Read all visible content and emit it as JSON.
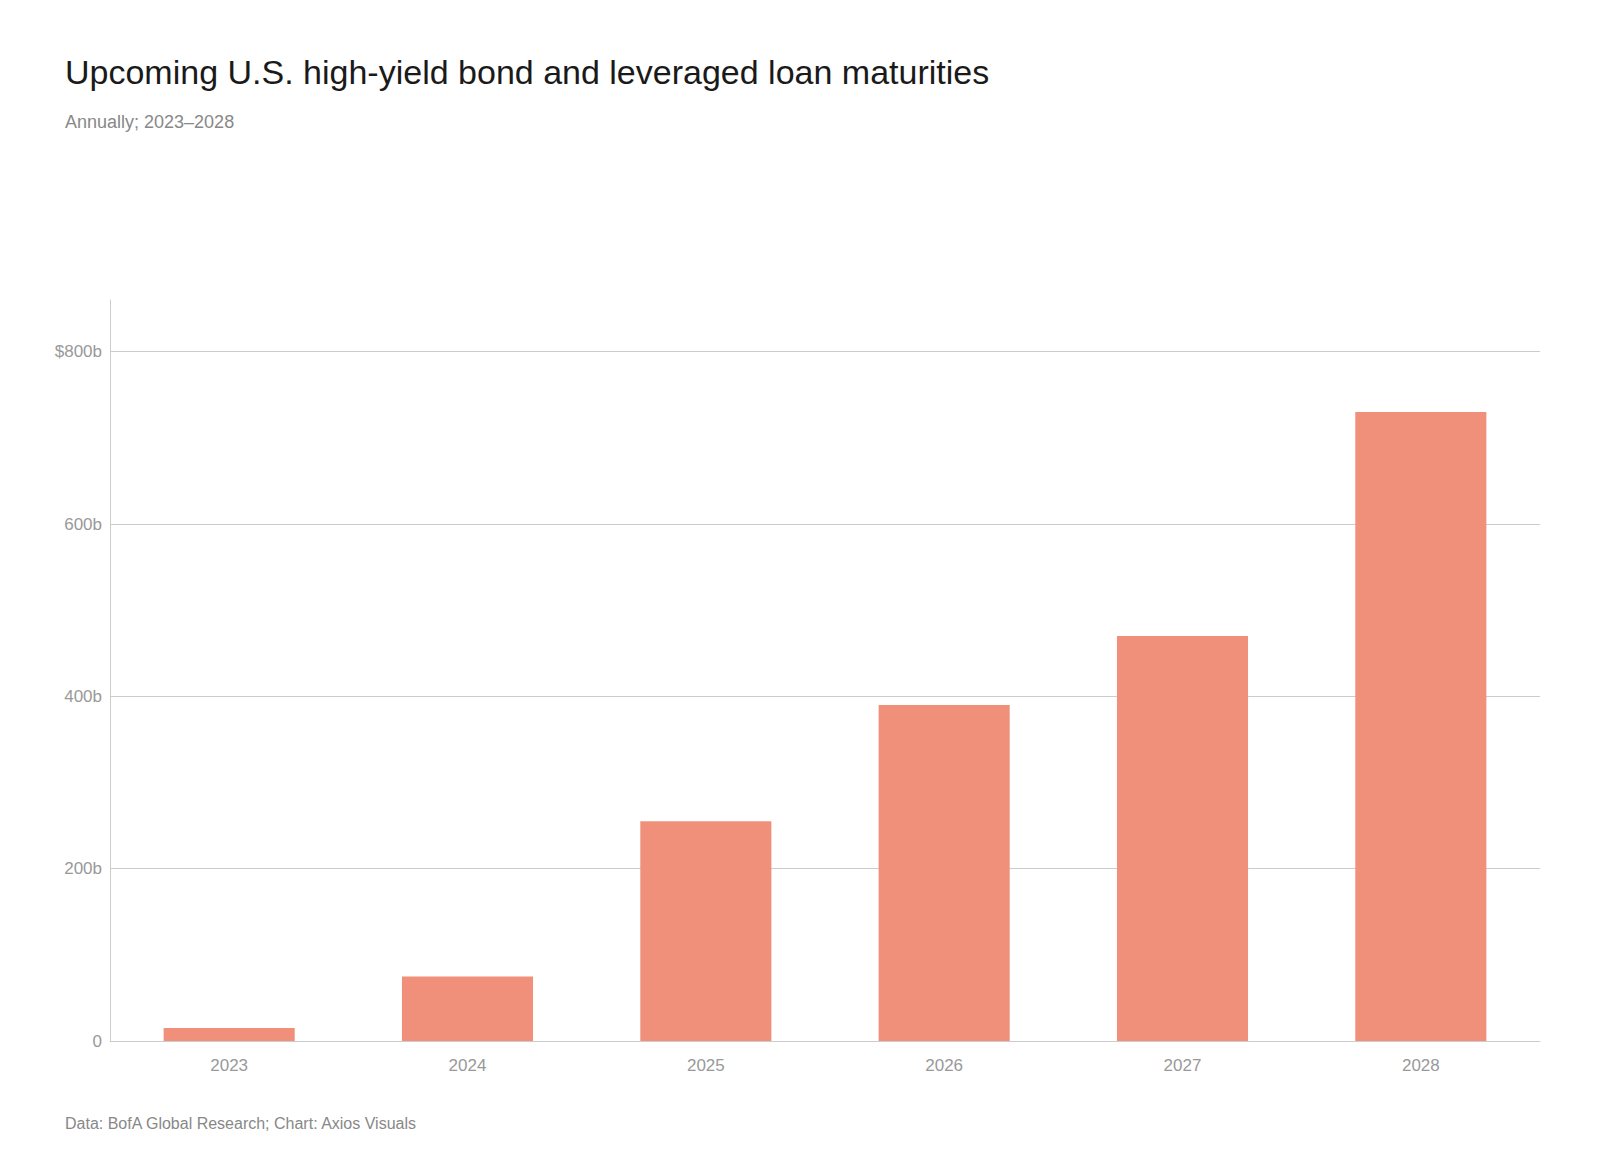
{
  "chart_data": {
    "type": "bar",
    "title": "Upcoming U.S. high-yield bond and leveraged loan maturities",
    "subtitle": "Annually; 2023–2028",
    "footer": "Data: BofA Global Research; Chart: Axios Visuals",
    "categories": [
      "2023",
      "2024",
      "2025",
      "2026",
      "2027",
      "2028"
    ],
    "values": [
      15,
      75,
      255,
      390,
      470,
      730
    ],
    "color": "#f0907a",
    "ylim": [
      0,
      860
    ],
    "yticks": [
      0,
      {
        "value": 200,
        "label": "200b"
      },
      {
        "value": 400,
        "label": "400b"
      },
      {
        "value": 600,
        "label": "600b"
      },
      {
        "value": 800,
        "label": "$800b"
      }
    ],
    "grid": true
  }
}
